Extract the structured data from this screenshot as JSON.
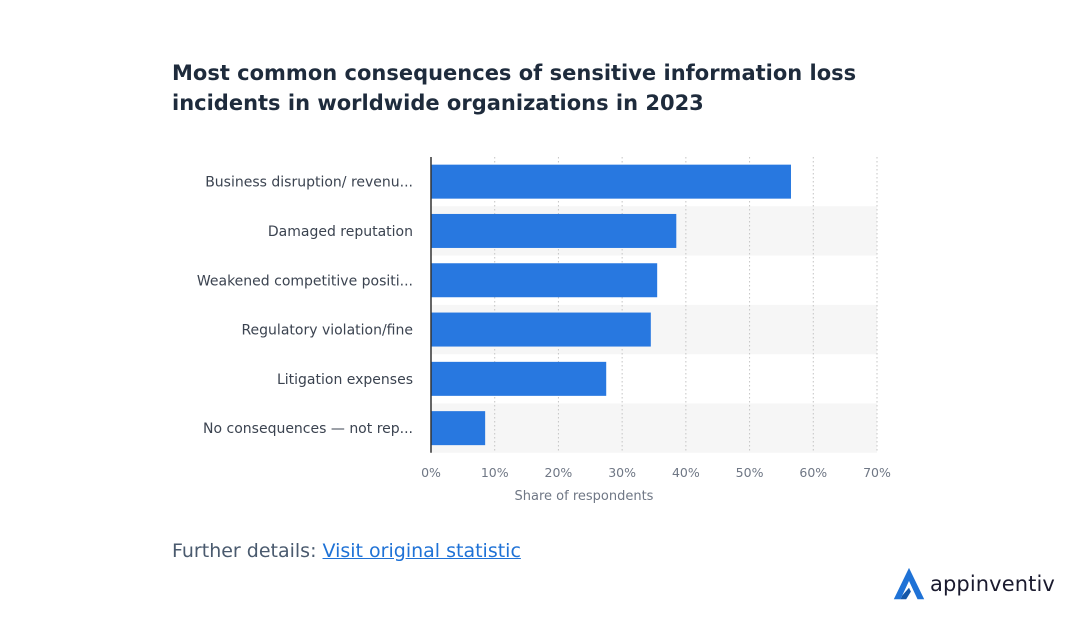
{
  "chart_data": {
    "type": "bar",
    "orientation": "horizontal",
    "title": "Most common consequences of sensitive information loss incidents in worldwide organizations in 2023",
    "categories": [
      "Business disruption/ revenu...",
      "Damaged reputation",
      "Weakened competitive positi...",
      "Regulatory violation/fine",
      "Litigation expenses",
      "No consequences — not rep..."
    ],
    "values": [
      56.5,
      38.5,
      35.5,
      34.5,
      27.5,
      8.5
    ],
    "xlabel": "Share of respondents",
    "ylabel": "",
    "xlim": [
      0,
      70
    ],
    "x_ticks": [
      0,
      10,
      20,
      30,
      40,
      50,
      60,
      70
    ],
    "x_tick_labels": [
      "0%",
      "10%",
      "20%",
      "30%",
      "40%",
      "50%",
      "60%",
      "70%"
    ],
    "grid": true,
    "legend": "none",
    "colors": {
      "bar": "#2878e0",
      "band": "#f6f6f6",
      "grid": "#c4c4c4",
      "axis": "#333333"
    }
  },
  "footer": {
    "prefix": "Further details: ",
    "link_text": "Visit original statistic"
  },
  "brand": {
    "name": "appinventiv",
    "logo_icon": "appinventiv-logo-icon",
    "logo_color": "#1f72d6"
  }
}
